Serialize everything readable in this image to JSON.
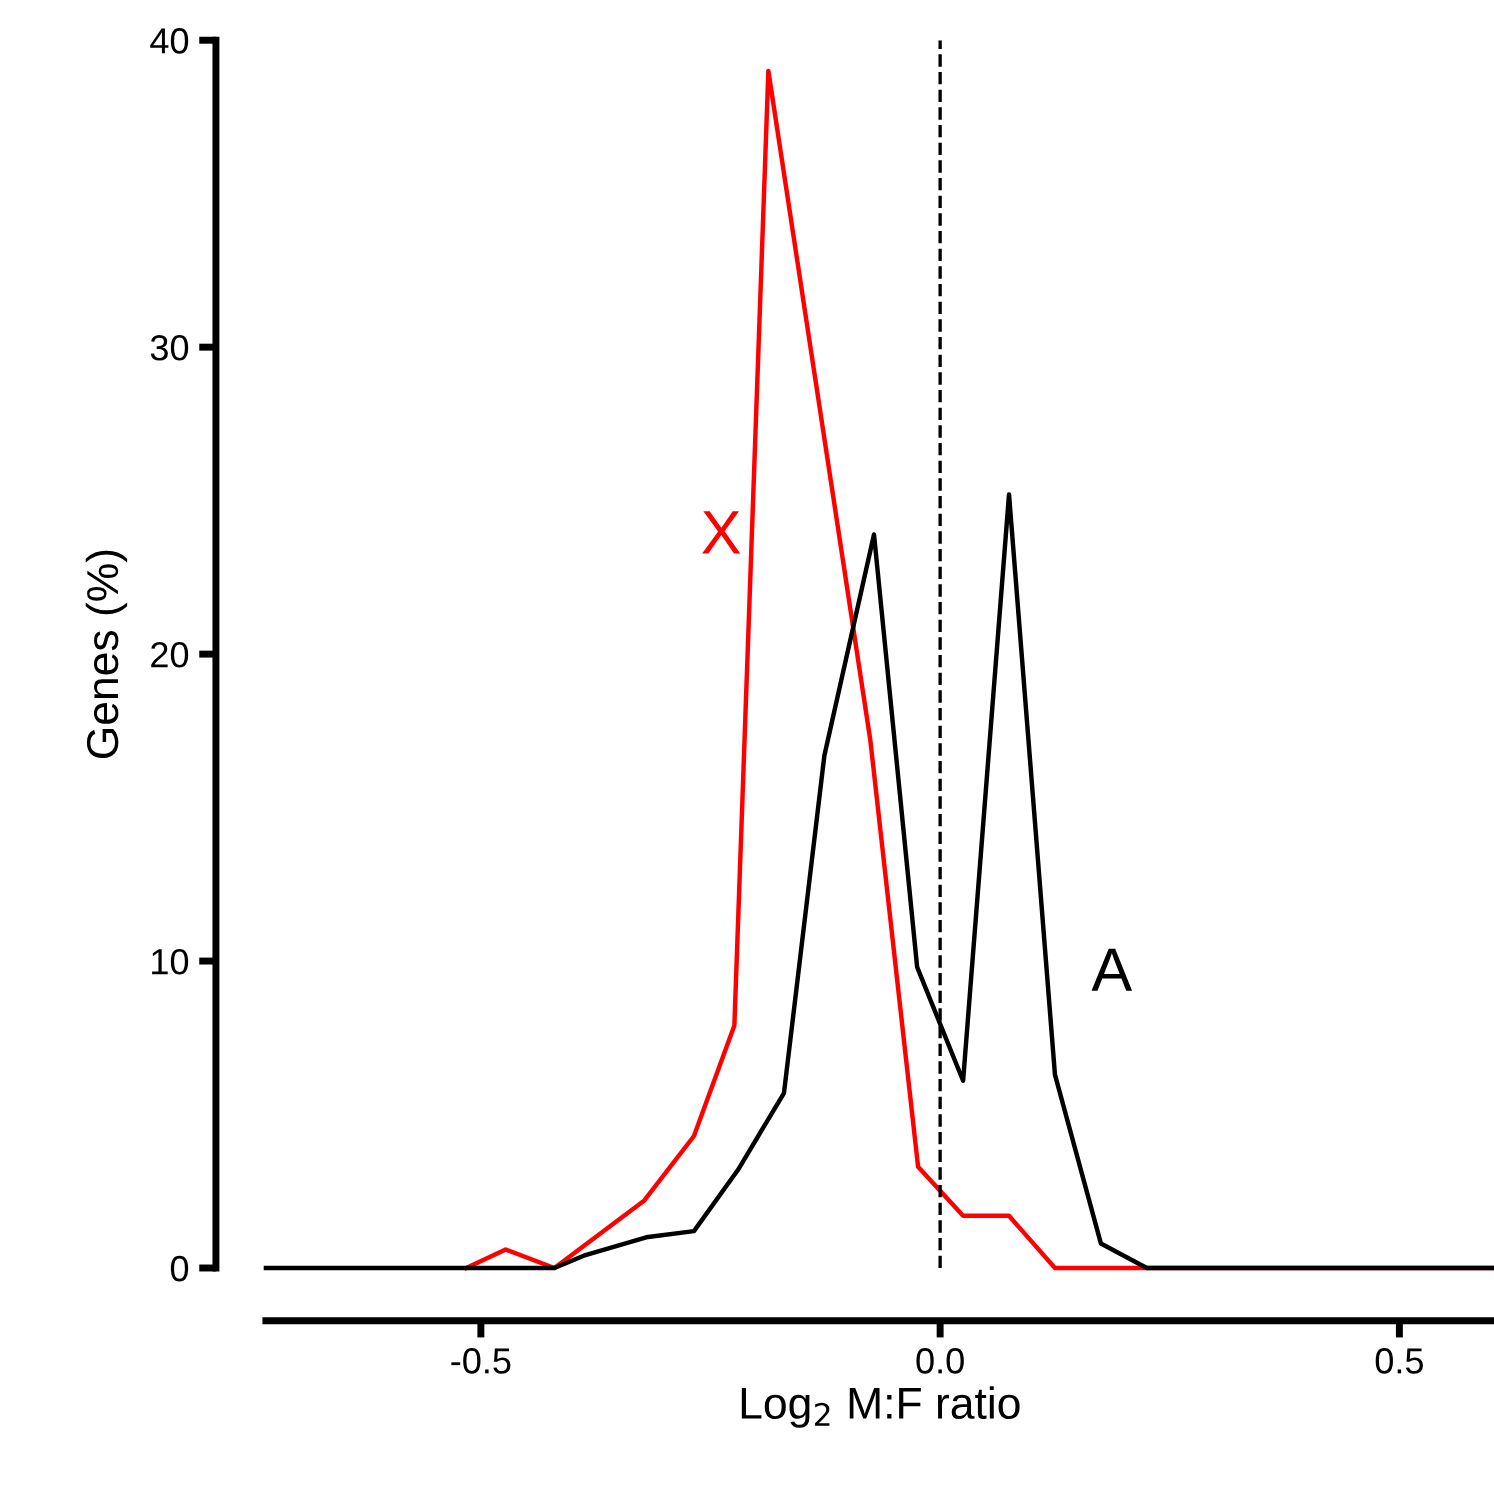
{
  "chart_data": {
    "type": "line",
    "xlabel": "Log$_{2}$ M:F ratio",
    "ylabel": "Genes (%)",
    "xlim": [
      -0.734,
      0.603
    ],
    "ylim": [
      0,
      40
    ],
    "xticks": [
      {
        "value": -0.5,
        "label": "-0.5"
      },
      {
        "value": 0,
        "label": "0.0"
      },
      {
        "value": 0.5,
        "label": "0.5"
      }
    ],
    "yticks": [
      0,
      10,
      20,
      30,
      40
    ],
    "grid": false,
    "legend": false,
    "marker": "none",
    "line_style": "solid",
    "ref_lines": [
      {
        "axis": "x",
        "value": 0,
        "label": null,
        "color": "#000000",
        "line_style": "dashed"
      }
    ],
    "series": [
      {
        "name": "X",
        "color": "#ff0000",
        "x": [
          -0.516,
          -0.473,
          -0.42,
          -0.322,
          -0.268,
          -0.224,
          -0.187,
          -0.076,
          -0.024,
          0.025,
          0.075,
          0.125,
          0.603
        ],
        "values": [
          0,
          0.6,
          0,
          2.2,
          4.3,
          7.9,
          39.0,
          17.2,
          3.3,
          1.7,
          1.7,
          0,
          0
        ]
      },
      {
        "name": "A",
        "color": "#000000",
        "x": [
          -0.734,
          -0.42,
          -0.388,
          -0.32,
          -0.268,
          -0.22,
          -0.17,
          -0.126,
          -0.072,
          -0.025,
          0.025,
          0.075,
          0.125,
          0.175,
          0.225,
          0.603
        ],
        "values": [
          0,
          0,
          0.4,
          1.0,
          1.2,
          3.2,
          5.7,
          16.7,
          23.9,
          9.8,
          6.1,
          25.2,
          6.3,
          0.8,
          0,
          0
        ]
      }
    ]
  }
}
